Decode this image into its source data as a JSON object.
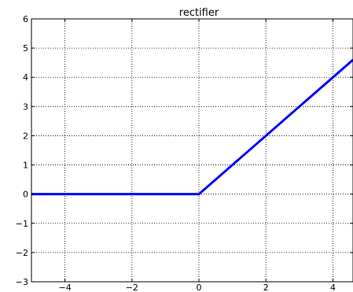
{
  "chart_data": {
    "type": "line",
    "title": "rectifier",
    "xlabel": "",
    "ylabel": "",
    "xlim": [
      -5,
      4.6
    ],
    "ylim": [
      -3,
      6
    ],
    "x_ticks": [
      -4,
      -2,
      0,
      2,
      4
    ],
    "y_ticks": [
      -3,
      -2,
      -1,
      0,
      1,
      2,
      3,
      4,
      5,
      6
    ],
    "x_tick_labels": [
      "−4",
      "−2",
      "0",
      "2",
      "4"
    ],
    "y_tick_labels": [
      "−3",
      "−2",
      "−1",
      "0",
      "1",
      "2",
      "3",
      "4",
      "5",
      "6"
    ],
    "grid": true,
    "series": [
      {
        "color": "#0000ff",
        "x": [
          -5,
          0,
          4.6
        ],
        "y": [
          0,
          0,
          4.6
        ]
      }
    ]
  }
}
